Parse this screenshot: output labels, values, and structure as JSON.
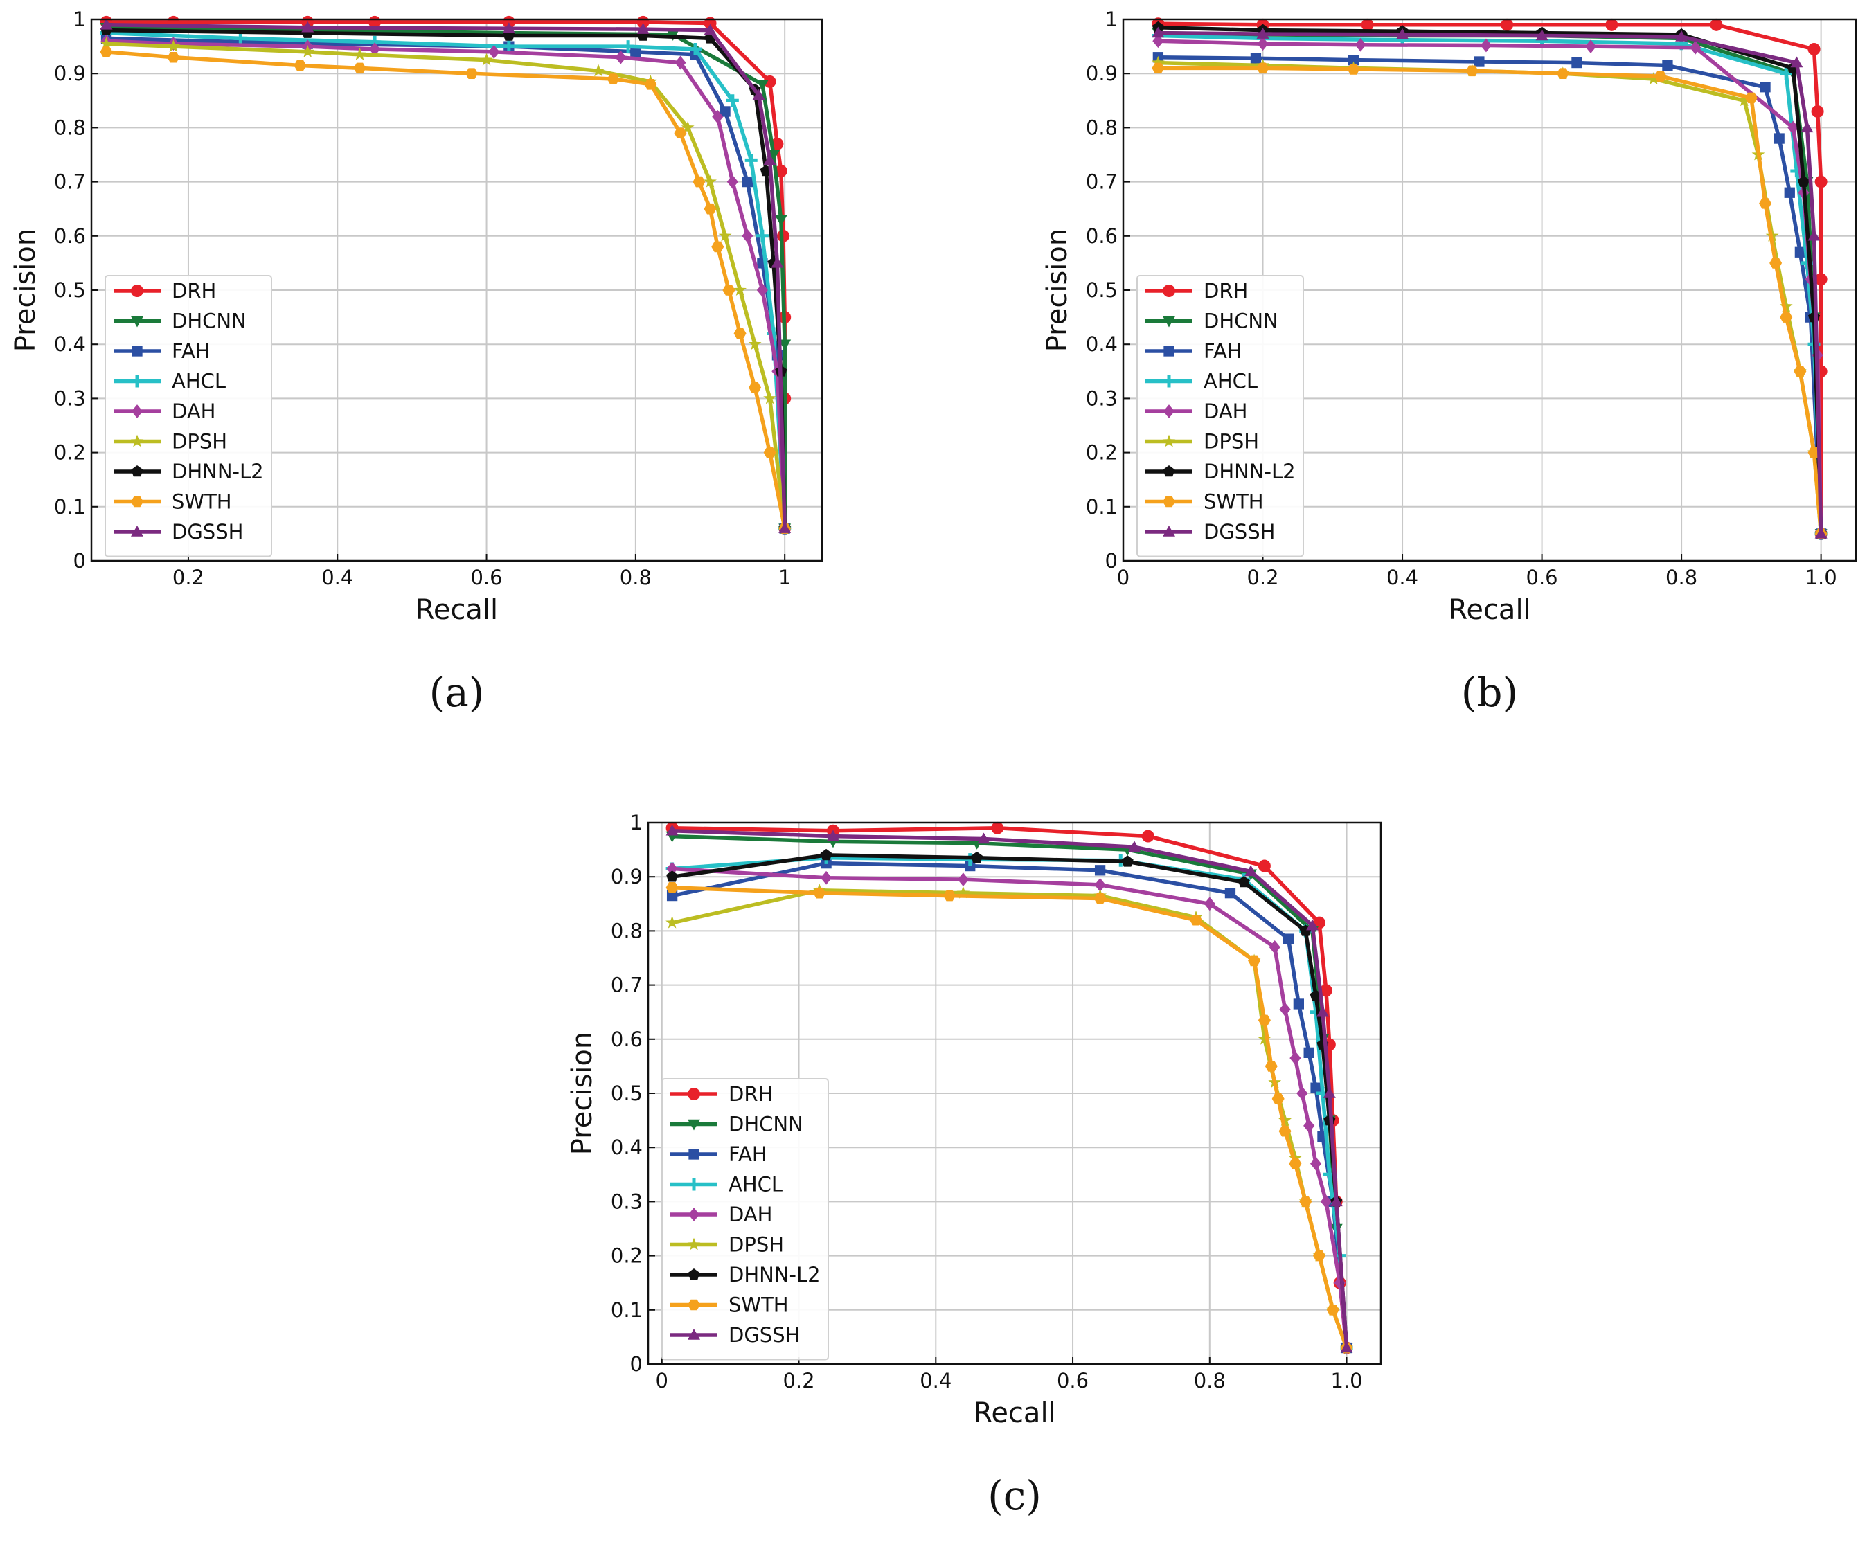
{
  "chart_data": [
    {
      "type": "line",
      "caption": "(a)",
      "xlabel": "Recall",
      "ylabel": "Precision",
      "xlim": [
        0.07,
        1.05
      ],
      "ylim": [
        0,
        1
      ],
      "xticks": [
        0.2,
        0.4,
        0.6,
        0.8,
        1
      ],
      "xtick_labels": [
        "0.2",
        "0.4",
        "0.6",
        "0.8",
        "1"
      ],
      "yticks": [
        0,
        0.1,
        0.2,
        0.3,
        0.4,
        0.5,
        0.6,
        0.7,
        0.8,
        0.9,
        1
      ],
      "ytick_labels": [
        "0",
        "0.1",
        "0.2",
        "0.3",
        "0.4",
        "0.5",
        "0.6",
        "0.7",
        "0.8",
        "0.9",
        "1"
      ],
      "grid": true,
      "legend": "center-left",
      "series": [
        {
          "name": "DRH",
          "color": "#e8212a",
          "marker": "circle",
          "x": [
            0.09,
            0.18,
            0.36,
            0.45,
            0.63,
            0.81,
            0.9,
            0.98,
            0.99,
            0.995,
            0.998,
            1.0,
            1.0,
            1.0
          ],
          "y": [
            0.995,
            0.995,
            0.995,
            0.995,
            0.995,
            0.995,
            0.993,
            0.885,
            0.77,
            0.72,
            0.6,
            0.45,
            0.3,
            0.06
          ]
        },
        {
          "name": "DHCNN",
          "color": "#1a7a3a",
          "marker": "triangle-down",
          "x": [
            0.09,
            0.36,
            0.63,
            0.85,
            0.97,
            0.985,
            0.995,
            1.0,
            1.0
          ],
          "y": [
            0.985,
            0.98,
            0.975,
            0.972,
            0.88,
            0.75,
            0.63,
            0.4,
            0.06
          ]
        },
        {
          "name": "FAH",
          "color": "#2b4fa3",
          "marker": "square",
          "x": [
            0.09,
            0.36,
            0.63,
            0.8,
            0.88,
            0.92,
            0.95,
            0.97,
            0.99,
            1.0
          ],
          "y": [
            0.965,
            0.955,
            0.95,
            0.94,
            0.935,
            0.83,
            0.7,
            0.55,
            0.38,
            0.06
          ]
        },
        {
          "name": "AHCL",
          "color": "#27c0c7",
          "marker": "plus",
          "x": [
            0.09,
            0.27,
            0.45,
            0.63,
            0.79,
            0.88,
            0.93,
            0.955,
            0.97,
            0.985,
            1.0
          ],
          "y": [
            0.975,
            0.965,
            0.958,
            0.95,
            0.95,
            0.945,
            0.85,
            0.74,
            0.6,
            0.42,
            0.06
          ]
        },
        {
          "name": "DAH",
          "color": "#a53f9e",
          "marker": "diamond",
          "x": [
            0.09,
            0.18,
            0.36,
            0.45,
            0.61,
            0.78,
            0.86,
            0.91,
            0.93,
            0.95,
            0.97,
            0.99,
            1.0
          ],
          "y": [
            0.96,
            0.955,
            0.95,
            0.945,
            0.94,
            0.93,
            0.92,
            0.82,
            0.7,
            0.6,
            0.5,
            0.35,
            0.06
          ]
        },
        {
          "name": "DPSH",
          "color": "#bcbd22",
          "marker": "star",
          "x": [
            0.09,
            0.18,
            0.36,
            0.43,
            0.6,
            0.75,
            0.82,
            0.87,
            0.9,
            0.92,
            0.94,
            0.96,
            0.98,
            1.0
          ],
          "y": [
            0.955,
            0.95,
            0.94,
            0.935,
            0.925,
            0.905,
            0.885,
            0.8,
            0.7,
            0.6,
            0.5,
            0.4,
            0.3,
            0.06
          ]
        },
        {
          "name": "DHNN-L2",
          "color": "#111111",
          "marker": "pentagon",
          "x": [
            0.09,
            0.36,
            0.63,
            0.81,
            0.9,
            0.96,
            0.975,
            0.985,
            0.995,
            1.0
          ],
          "y": [
            0.98,
            0.975,
            0.97,
            0.97,
            0.965,
            0.87,
            0.72,
            0.55,
            0.35,
            0.06
          ]
        },
        {
          "name": "SWTH",
          "color": "#f5a11c",
          "marker": "hexagon",
          "x": [
            0.09,
            0.18,
            0.35,
            0.43,
            0.58,
            0.77,
            0.82,
            0.86,
            0.885,
            0.9,
            0.91,
            0.925,
            0.94,
            0.96,
            0.98,
            1.0
          ],
          "y": [
            0.94,
            0.93,
            0.915,
            0.91,
            0.9,
            0.89,
            0.88,
            0.79,
            0.7,
            0.65,
            0.58,
            0.5,
            0.42,
            0.32,
            0.2,
            0.06
          ]
        },
        {
          "name": "DGSSH",
          "color": "#7b2a80",
          "marker": "triangle-up",
          "x": [
            0.09,
            0.36,
            0.63,
            0.81,
            0.9,
            0.965,
            0.98,
            0.99,
            1.0
          ],
          "y": [
            0.99,
            0.985,
            0.983,
            0.982,
            0.98,
            0.86,
            0.74,
            0.55,
            0.06
          ]
        }
      ]
    },
    {
      "type": "line",
      "caption": "(b)",
      "xlabel": "Recall",
      "ylabel": "Precision",
      "xlim": [
        0,
        1.05
      ],
      "ylim": [
        0,
        1
      ],
      "xticks": [
        0,
        0.2,
        0.4,
        0.6,
        0.8,
        1.0
      ],
      "xtick_labels": [
        "0",
        "0.2",
        "0.4",
        "0.6",
        "0.8",
        "1.0"
      ],
      "yticks": [
        0,
        0.1,
        0.2,
        0.3,
        0.4,
        0.5,
        0.6,
        0.7,
        0.8,
        0.9,
        1
      ],
      "ytick_labels": [
        "0",
        "0.1",
        "0.2",
        "0.3",
        "0.4",
        "0.5",
        "0.6",
        "0.7",
        "0.8",
        "0.9",
        "1"
      ],
      "grid": true,
      "legend": "center-left",
      "series": [
        {
          "name": "DRH",
          "color": "#e8212a",
          "marker": "circle",
          "x": [
            0.05,
            0.2,
            0.35,
            0.55,
            0.7,
            0.85,
            0.99,
            0.995,
            1.0,
            1.0,
            1.0,
            1.0
          ],
          "y": [
            0.992,
            0.99,
            0.99,
            0.99,
            0.99,
            0.99,
            0.945,
            0.83,
            0.7,
            0.52,
            0.35,
            0.05
          ]
        },
        {
          "name": "DHCNN",
          "color": "#1a7a3a",
          "marker": "triangle-down",
          "x": [
            0.05,
            0.2,
            0.4,
            0.6,
            0.8,
            0.96,
            0.98,
            0.99,
            1.0
          ],
          "y": [
            0.975,
            0.972,
            0.97,
            0.97,
            0.965,
            0.9,
            0.7,
            0.45,
            0.05
          ]
        },
        {
          "name": "FAH",
          "color": "#2b4fa3",
          "marker": "square",
          "x": [
            0.05,
            0.19,
            0.33,
            0.51,
            0.65,
            0.78,
            0.92,
            0.94,
            0.955,
            0.97,
            0.985,
            1.0
          ],
          "y": [
            0.93,
            0.928,
            0.925,
            0.922,
            0.92,
            0.915,
            0.875,
            0.78,
            0.68,
            0.57,
            0.45,
            0.05
          ]
        },
        {
          "name": "AHCL",
          "color": "#27c0c7",
          "marker": "plus",
          "x": [
            0.05,
            0.2,
            0.4,
            0.6,
            0.8,
            0.95,
            0.965,
            0.98,
            0.99,
            1.0
          ],
          "y": [
            0.97,
            0.965,
            0.962,
            0.96,
            0.955,
            0.9,
            0.72,
            0.55,
            0.4,
            0.05
          ]
        },
        {
          "name": "DAH",
          "color": "#a53f9e",
          "marker": "diamond",
          "x": [
            0.05,
            0.2,
            0.34,
            0.52,
            0.67,
            0.82,
            0.96,
            0.975,
            0.985,
            0.995,
            1.0
          ],
          "y": [
            0.96,
            0.955,
            0.953,
            0.952,
            0.95,
            0.948,
            0.8,
            0.68,
            0.52,
            0.38,
            0.05
          ]
        },
        {
          "name": "DPSH",
          "color": "#bcbd22",
          "marker": "star",
          "x": [
            0.05,
            0.2,
            0.33,
            0.5,
            0.63,
            0.76,
            0.89,
            0.91,
            0.93,
            0.95,
            0.97,
            0.99,
            1.0
          ],
          "y": [
            0.92,
            0.915,
            0.91,
            0.905,
            0.9,
            0.89,
            0.85,
            0.75,
            0.6,
            0.47,
            0.35,
            0.2,
            0.05
          ]
        },
        {
          "name": "DHNN-L2",
          "color": "#111111",
          "marker": "pentagon",
          "x": [
            0.05,
            0.2,
            0.4,
            0.6,
            0.8,
            0.96,
            0.975,
            0.99,
            1.0
          ],
          "y": [
            0.985,
            0.98,
            0.978,
            0.975,
            0.972,
            0.91,
            0.7,
            0.45,
            0.05
          ]
        },
        {
          "name": "SWTH",
          "color": "#f5a11c",
          "marker": "hexagon",
          "x": [
            0.05,
            0.2,
            0.33,
            0.5,
            0.63,
            0.77,
            0.9,
            0.92,
            0.935,
            0.95,
            0.97,
            0.99,
            1.0
          ],
          "y": [
            0.91,
            0.91,
            0.908,
            0.905,
            0.9,
            0.895,
            0.855,
            0.66,
            0.55,
            0.45,
            0.35,
            0.2,
            0.05
          ]
        },
        {
          "name": "DGSSH",
          "color": "#7b2a80",
          "marker": "triangle-up",
          "x": [
            0.05,
            0.2,
            0.4,
            0.6,
            0.8,
            0.965,
            0.98,
            0.99,
            1.0
          ],
          "y": [
            0.975,
            0.973,
            0.972,
            0.97,
            0.968,
            0.92,
            0.8,
            0.6,
            0.05
          ]
        }
      ]
    },
    {
      "type": "line",
      "caption": "(c)",
      "xlabel": "Recall",
      "ylabel": "Precision",
      "xlim": [
        -0.02,
        1.05
      ],
      "ylim": [
        0,
        1
      ],
      "xticks": [
        0,
        0.2,
        0.4,
        0.6,
        0.8,
        1.0
      ],
      "xtick_labels": [
        "0",
        "0.2",
        "0.4",
        "0.6",
        "0.8",
        "1.0"
      ],
      "yticks": [
        0,
        0.1,
        0.2,
        0.3,
        0.4,
        0.5,
        0.6,
        0.7,
        0.8,
        0.9,
        1
      ],
      "ytick_labels": [
        "0",
        "0.1",
        "0.2",
        "0.3",
        "0.4",
        "0.5",
        "0.6",
        "0.7",
        "0.8",
        "0.9",
        "1"
      ],
      "grid": true,
      "legend": "center-left",
      "series": [
        {
          "name": "DRH",
          "color": "#e8212a",
          "marker": "circle",
          "x": [
            0.015,
            0.25,
            0.49,
            0.71,
            0.88,
            0.96,
            0.97,
            0.975,
            0.98,
            0.985,
            0.99,
            1.0
          ],
          "y": [
            0.99,
            0.985,
            0.99,
            0.975,
            0.92,
            0.815,
            0.69,
            0.59,
            0.45,
            0.3,
            0.15,
            0.03
          ]
        },
        {
          "name": "DHCNN",
          "color": "#1a7a3a",
          "marker": "triangle-down",
          "x": [
            0.015,
            0.25,
            0.46,
            0.68,
            0.86,
            0.95,
            0.965,
            0.975,
            0.985,
            1.0
          ],
          "y": [
            0.975,
            0.965,
            0.962,
            0.95,
            0.905,
            0.8,
            0.6,
            0.45,
            0.25,
            0.03
          ]
        },
        {
          "name": "FAH",
          "color": "#2b4fa3",
          "marker": "square",
          "x": [
            0.015,
            0.24,
            0.45,
            0.64,
            0.83,
            0.915,
            0.93,
            0.945,
            0.955,
            0.965,
            0.98,
            1.0
          ],
          "y": [
            0.865,
            0.925,
            0.92,
            0.912,
            0.87,
            0.785,
            0.665,
            0.575,
            0.51,
            0.42,
            0.3,
            0.03
          ]
        },
        {
          "name": "AHCL",
          "color": "#27c0c7",
          "marker": "plus",
          "x": [
            0.015,
            0.24,
            0.45,
            0.67,
            0.85,
            0.94,
            0.955,
            0.965,
            0.975,
            0.99,
            1.0
          ],
          "y": [
            0.915,
            0.935,
            0.932,
            0.93,
            0.895,
            0.8,
            0.65,
            0.5,
            0.35,
            0.2,
            0.03
          ]
        },
        {
          "name": "DAH",
          "color": "#a53f9e",
          "marker": "diamond",
          "x": [
            0.015,
            0.24,
            0.44,
            0.64,
            0.8,
            0.895,
            0.91,
            0.925,
            0.935,
            0.945,
            0.955,
            0.97,
            0.99,
            1.0
          ],
          "y": [
            0.915,
            0.898,
            0.895,
            0.885,
            0.85,
            0.77,
            0.655,
            0.565,
            0.5,
            0.44,
            0.37,
            0.3,
            0.15,
            0.03
          ]
        },
        {
          "name": "DPSH",
          "color": "#bcbd22",
          "marker": "star",
          "x": [
            0.015,
            0.23,
            0.44,
            0.64,
            0.78,
            0.865,
            0.88,
            0.895,
            0.91,
            0.925,
            0.94,
            0.96,
            0.98,
            1.0
          ],
          "y": [
            0.815,
            0.875,
            0.87,
            0.865,
            0.825,
            0.745,
            0.6,
            0.52,
            0.45,
            0.38,
            0.3,
            0.2,
            0.1,
            0.03
          ]
        },
        {
          "name": "DHNN-L2",
          "color": "#111111",
          "marker": "pentagon",
          "x": [
            0.015,
            0.24,
            0.46,
            0.68,
            0.85,
            0.94,
            0.955,
            0.965,
            0.975,
            0.985,
            1.0
          ],
          "y": [
            0.9,
            0.94,
            0.935,
            0.928,
            0.89,
            0.8,
            0.68,
            0.59,
            0.45,
            0.3,
            0.03
          ]
        },
        {
          "name": "SWTH",
          "color": "#f5a11c",
          "marker": "hexagon",
          "x": [
            0.015,
            0.23,
            0.42,
            0.64,
            0.78,
            0.865,
            0.88,
            0.89,
            0.9,
            0.91,
            0.925,
            0.94,
            0.96,
            0.98,
            1.0
          ],
          "y": [
            0.88,
            0.87,
            0.865,
            0.86,
            0.82,
            0.745,
            0.635,
            0.55,
            0.49,
            0.43,
            0.37,
            0.3,
            0.2,
            0.1,
            0.03
          ]
        },
        {
          "name": "DGSSH",
          "color": "#7b2a80",
          "marker": "triangle-up",
          "x": [
            0.015,
            0.25,
            0.47,
            0.69,
            0.86,
            0.95,
            0.965,
            0.975,
            0.985,
            1.0
          ],
          "y": [
            0.985,
            0.975,
            0.97,
            0.955,
            0.91,
            0.81,
            0.65,
            0.5,
            0.3,
            0.03
          ]
        }
      ]
    }
  ]
}
